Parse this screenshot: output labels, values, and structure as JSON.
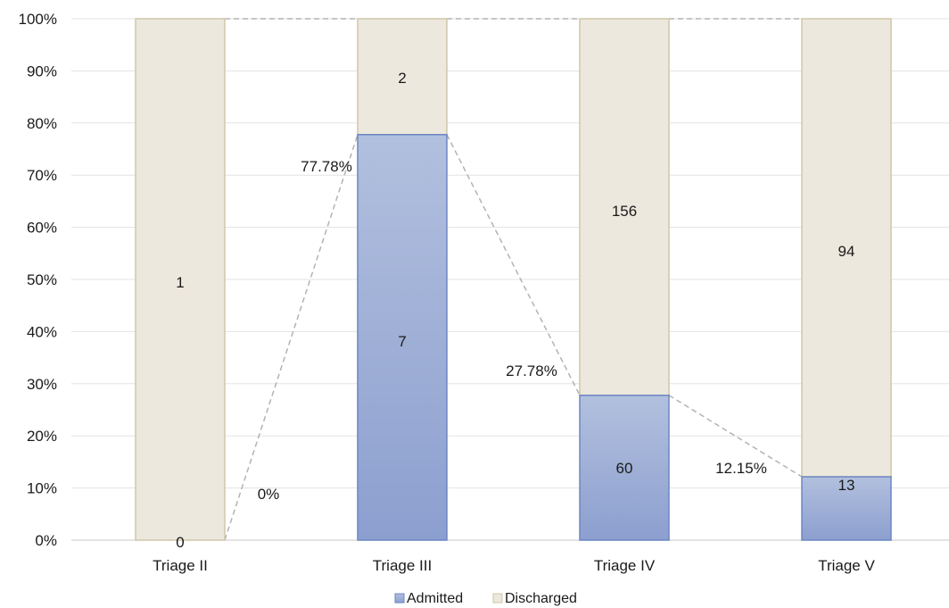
{
  "chart_data": {
    "type": "bar",
    "stacked": true,
    "normalized": true,
    "categories": [
      "Triage II",
      "Triage III",
      "Triage IV",
      "Triage V"
    ],
    "series": [
      {
        "name": "Admitted",
        "values": [
          0,
          7,
          60,
          13
        ],
        "color": "#8fa2d0"
      },
      {
        "name": "Discharged",
        "values": [
          1,
          2,
          156,
          94
        ],
        "color": "#ede8dd"
      }
    ],
    "admitted_percent_labels": [
      "0%",
      "77.78%",
      "27.78%",
      "12.15%"
    ],
    "admitted_percent_values": [
      0,
      77.78,
      27.78,
      12.15
    ],
    "y_ticks": [
      "0%",
      "10%",
      "20%",
      "30%",
      "40%",
      "50%",
      "60%",
      "70%",
      "80%",
      "90%",
      "100%"
    ],
    "ylim": [
      0,
      100
    ],
    "title": "",
    "xlabel": "",
    "ylabel": "",
    "grid": true,
    "legend": "bottom",
    "connector_lines": "dashed"
  }
}
